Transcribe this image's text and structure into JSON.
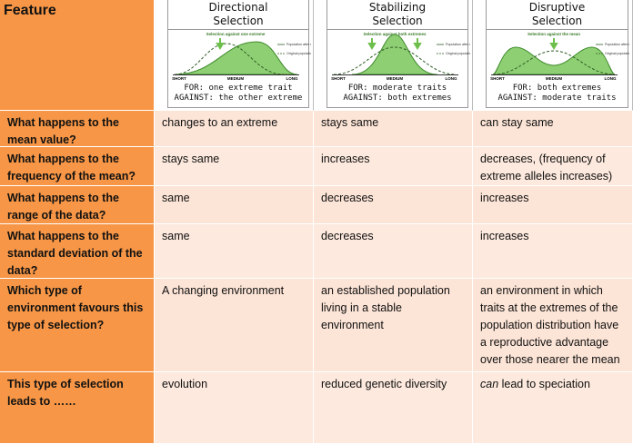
{
  "header": {
    "feature": "Feature",
    "columns": [
      {
        "title": "Directional Selection",
        "graph_caption": "Selection against one extreme",
        "axis": [
          "SHORT",
          "MEDIUM",
          "LONG"
        ],
        "legend": [
          "Population after selection",
          "Original population"
        ],
        "for": "FOR: one extreme trait",
        "against": "AGAINST: the other extreme"
      },
      {
        "title": "Stabilizing Selection",
        "graph_caption": "Selection against both extremes",
        "axis": [
          "SHORT",
          "MEDIUM",
          "LONG"
        ],
        "legend": [
          "Population after selection",
          "Original population"
        ],
        "for": "FOR: moderate traits",
        "against": "AGAINST: both extremes"
      },
      {
        "title": "Disruptive Selection",
        "graph_caption": "Selection against the mean",
        "axis": [
          "SHORT",
          "MEDIUM",
          "LONG"
        ],
        "legend": [
          "Population after selection",
          "Original population"
        ],
        "for": "FOR: both extremes",
        "against": "AGAINST: moderate traits"
      }
    ]
  },
  "table": {
    "rows": [
      {
        "label": "What happens to the mean value?",
        "cells": [
          "changes to an extreme",
          "stays same",
          "can stay same"
        ]
      },
      {
        "label": "What happens to the frequency of the mean?",
        "cells": [
          "stays same",
          "increases",
          "decreases, (frequency of extreme alleles increases)"
        ]
      },
      {
        "label": "What happens to the range of the data?",
        "cells": [
          "same",
          "decreases",
          "increases"
        ]
      },
      {
        "label": "What happens to the standard deviation of the data?",
        "cells": [
          "same",
          "decreases",
          "increases"
        ]
      },
      {
        "label": "Which type of environment favours this type of selection?",
        "cells": [
          "A changing environment",
          "an established population living in a stable environment",
          "an environment in which traits at the extremes of the population distribution have a reproductive advantage over those nearer the mean"
        ]
      },
      {
        "label": "This type of selection leads to ……",
        "cells": [
          "evolution",
          "reduced genetic diversity",
          {
            "emphasis": "can",
            "rest": " lead to speciation"
          }
        ]
      }
    ]
  }
}
